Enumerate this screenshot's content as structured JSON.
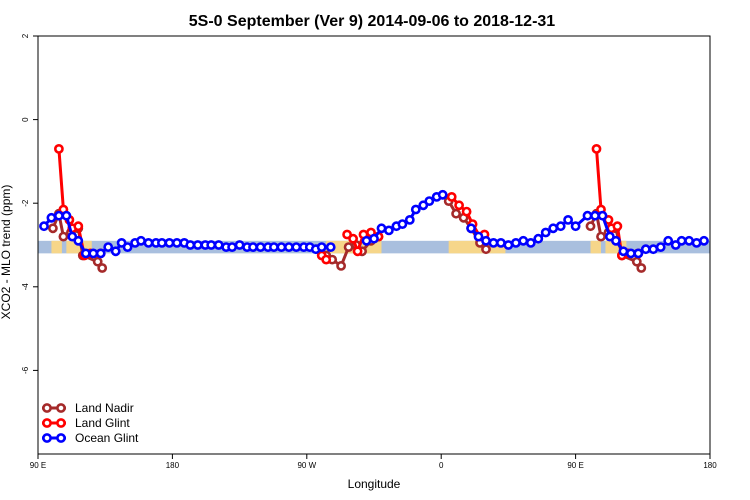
{
  "chart_data": {
    "type": "line",
    "title": "5S-0 September (Ver 9)   2014-09-06 to 2018-12-31",
    "xlabel": "Longitude",
    "ylabel": "XCO2 - MLO trend (ppm)",
    "xlim": [
      90,
      540
    ],
    "ylim": [
      -8,
      2
    ],
    "x_ticks": [
      {
        "value": 90,
        "label": "90 E"
      },
      {
        "value": 180,
        "label": "180"
      },
      {
        "value": 270,
        "label": "90 W"
      },
      {
        "value": 360,
        "label": "0"
      },
      {
        "value": 450,
        "label": "90 E"
      },
      {
        "value": 540,
        "label": "180"
      }
    ],
    "y_ticks": [
      {
        "value": 2,
        "label": "2"
      },
      {
        "value": 0,
        "label": "0"
      },
      {
        "value": -2,
        "label": "-2"
      },
      {
        "value": -4,
        "label": "-4"
      },
      {
        "value": -6,
        "label": "-6"
      }
    ],
    "grid": false,
    "legend_position": "bottom-left",
    "band": {
      "y_range": [
        -3.2,
        -2.9
      ],
      "ocean_color": "#a9bfde",
      "land_color": "#f6d68a",
      "land_segments": [
        [
          99,
          106
        ],
        [
          109,
          126
        ],
        [
          283,
          302
        ],
        [
          307,
          320
        ],
        [
          365,
          403
        ],
        [
          460,
          467
        ],
        [
          470,
          484
        ]
      ]
    },
    "series": [
      {
        "name": "Land Nadir",
        "color": "#a52a2a",
        "points": [
          [
            100,
            -2.6
          ],
          [
            104,
            -2.25
          ],
          [
            107,
            -2.8
          ],
          [
            112,
            -2.7
          ],
          [
            117,
            -2.6
          ],
          [
            120,
            -3.25
          ],
          [
            130,
            -3.4
          ],
          [
            133,
            -3.55
          ],
          [
            277,
            -3.1
          ],
          [
            283,
            -3.25
          ],
          [
            287,
            -3.35
          ],
          [
            293,
            -3.5
          ],
          [
            298,
            -3.05
          ],
          [
            303,
            -3.0
          ],
          [
            307,
            -3.15
          ],
          [
            313,
            -2.9
          ],
          [
            318,
            -2.8
          ],
          [
            365,
            -1.95
          ],
          [
            370,
            -2.25
          ],
          [
            375,
            -2.35
          ],
          [
            380,
            -2.6
          ],
          [
            386,
            -2.95
          ],
          [
            390,
            -3.1
          ],
          [
            460,
            -2.55
          ],
          [
            464,
            -2.25
          ],
          [
            467,
            -2.8
          ],
          [
            472,
            -2.7
          ],
          [
            477,
            -2.6
          ],
          [
            481,
            -3.25
          ],
          [
            491,
            -3.4
          ],
          [
            494,
            -3.55
          ]
        ]
      },
      {
        "name": "Land Glint",
        "color": "#ff0000",
        "points": [
          [
            104,
            -0.7
          ],
          [
            107,
            -2.15
          ],
          [
            111,
            -2.4
          ],
          [
            113,
            -2.6
          ],
          [
            117,
            -2.55
          ],
          [
            121,
            -3.25
          ],
          [
            125,
            -3.2
          ],
          [
            132,
            -3.2
          ],
          [
            280,
            -3.25
          ],
          [
            283,
            -3.35
          ],
          [
            297,
            -2.75
          ],
          [
            301,
            -2.85
          ],
          [
            304,
            -3.15
          ],
          [
            308,
            -2.75
          ],
          [
            313,
            -2.7
          ],
          [
            318,
            -2.8
          ],
          [
            367,
            -1.85
          ],
          [
            372,
            -2.05
          ],
          [
            377,
            -2.2
          ],
          [
            381,
            -2.5
          ],
          [
            386,
            -2.8
          ],
          [
            389,
            -2.75
          ],
          [
            464,
            -0.7
          ],
          [
            467,
            -2.15
          ],
          [
            472,
            -2.4
          ],
          [
            474,
            -2.6
          ],
          [
            478,
            -2.55
          ],
          [
            481,
            -3.25
          ],
          [
            485,
            -3.2
          ],
          [
            492,
            -3.2
          ]
        ]
      },
      {
        "name": "Ocean Glint",
        "color": "#0000ff",
        "points": [
          [
            94,
            -2.55
          ],
          [
            99,
            -2.35
          ],
          [
            104,
            -2.3
          ],
          [
            109,
            -2.3
          ],
          [
            113,
            -2.8
          ],
          [
            117,
            -2.9
          ],
          [
            122,
            -3.2
          ],
          [
            127,
            -3.2
          ],
          [
            132,
            -3.2
          ],
          [
            137,
            -3.05
          ],
          [
            142,
            -3.15
          ],
          [
            146,
            -2.95
          ],
          [
            150,
            -3.05
          ],
          [
            155,
            -2.95
          ],
          [
            159,
            -2.9
          ],
          [
            164,
            -2.95
          ],
          [
            169,
            -2.95
          ],
          [
            173,
            -2.95
          ],
          [
            178,
            -2.95
          ],
          [
            183,
            -2.95
          ],
          [
            188,
            -2.95
          ],
          [
            192,
            -3.0
          ],
          [
            197,
            -3.0
          ],
          [
            202,
            -3.0
          ],
          [
            206,
            -3.0
          ],
          [
            211,
            -3.0
          ],
          [
            216,
            -3.05
          ],
          [
            220,
            -3.05
          ],
          [
            225,
            -3.0
          ],
          [
            230,
            -3.05
          ],
          [
            234,
            -3.05
          ],
          [
            239,
            -3.05
          ],
          [
            244,
            -3.05
          ],
          [
            248,
            -3.05
          ],
          [
            253,
            -3.05
          ],
          [
            258,
            -3.05
          ],
          [
            263,
            -3.05
          ],
          [
            268,
            -3.05
          ],
          [
            272,
            -3.05
          ],
          [
            276,
            -3.1
          ],
          [
            280,
            -3.05
          ],
          [
            286,
            -3.05
          ],
          [
            310,
            -2.9
          ],
          [
            315,
            -2.85
          ],
          [
            320,
            -2.6
          ],
          [
            325,
            -2.65
          ],
          [
            330,
            -2.55
          ],
          [
            334,
            -2.5
          ],
          [
            339,
            -2.4
          ],
          [
            343,
            -2.15
          ],
          [
            348,
            -2.05
          ],
          [
            352,
            -1.95
          ],
          [
            357,
            -1.85
          ],
          [
            361,
            -1.8
          ],
          [
            380,
            -2.6
          ],
          [
            385,
            -2.8
          ],
          [
            390,
            -2.9
          ],
          [
            395,
            -2.95
          ],
          [
            400,
            -2.95
          ],
          [
            405,
            -3.0
          ],
          [
            410,
            -2.95
          ],
          [
            415,
            -2.9
          ],
          [
            420,
            -2.95
          ],
          [
            425,
            -2.85
          ],
          [
            430,
            -2.7
          ],
          [
            435,
            -2.6
          ],
          [
            440,
            -2.55
          ],
          [
            445,
            -2.4
          ],
          [
            450,
            -2.55
          ],
          [
            458,
            -2.3
          ],
          [
            463,
            -2.3
          ],
          [
            468,
            -2.3
          ],
          [
            473,
            -2.8
          ],
          [
            477,
            -2.9
          ],
          [
            482,
            -3.15
          ],
          [
            487,
            -3.2
          ],
          [
            492,
            -3.2
          ],
          [
            497,
            -3.1
          ],
          [
            502,
            -3.1
          ],
          [
            507,
            -3.05
          ],
          [
            512,
            -2.9
          ],
          [
            517,
            -3.0
          ],
          [
            521,
            -2.9
          ],
          [
            526,
            -2.9
          ],
          [
            531,
            -2.95
          ],
          [
            536,
            -2.9
          ]
        ]
      }
    ]
  }
}
